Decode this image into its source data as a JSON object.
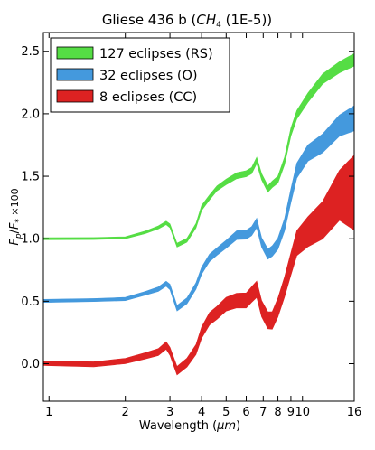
{
  "chart_data": {
    "type": "area",
    "title_main": "Gliese 436 b (",
    "title_species": "CH",
    "title_species_sub": "4",
    "title_suffix": " (1E-5))",
    "xlabel_main": "Wavelength (",
    "xlabel_unit": "μm",
    "xlabel_close": ")",
    "ylabel_a": "F",
    "ylabel_a_sub": "p",
    "ylabel_slash": "/",
    "ylabel_b": "F",
    "ylabel_b_sub": "*",
    "ylabel_mult": " ×100",
    "x_scale": "log",
    "xlim": [
      0.95,
      16
    ],
    "ylim": [
      -0.3,
      2.65
    ],
    "x_ticks": [
      1,
      2,
      3,
      4,
      5,
      6,
      7,
      8,
      9,
      10,
      16
    ],
    "x_tick_labels": [
      "1",
      "2",
      "3",
      "4",
      "5",
      "6",
      "7",
      "8",
      "9",
      "10",
      "16"
    ],
    "y_ticks": [
      0.0,
      0.5,
      1.0,
      1.5,
      2.0,
      2.5
    ],
    "y_tick_labels": [
      "0.0",
      "0.5",
      "1.0",
      "1.5",
      "2.0",
      "2.5"
    ],
    "grid": false,
    "legend_position": "top-left",
    "x": [
      0.95,
      1.5,
      2.0,
      2.4,
      2.7,
      2.9,
      3.0,
      3.2,
      3.5,
      3.8,
      4.0,
      4.3,
      4.6,
      5.0,
      5.5,
      6.0,
      6.3,
      6.6,
      6.9,
      7.3,
      7.6,
      8.0,
      8.5,
      9.0,
      9.5,
      10.5,
      12.0,
      14.0,
      16.0
    ],
    "series": [
      {
        "name": "127 eclipses (RS)",
        "color": "#55dd44",
        "center": [
          1.0,
          1.0,
          1.01,
          1.05,
          1.09,
          1.13,
          1.1,
          0.95,
          0.99,
          1.1,
          1.25,
          1.33,
          1.4,
          1.46,
          1.5,
          1.52,
          1.55,
          1.62,
          1.5,
          1.4,
          1.43,
          1.48,
          1.62,
          1.85,
          2.0,
          2.12,
          2.28,
          2.38,
          2.42
        ],
        "half_width": [
          0.008,
          0.008,
          0.008,
          0.01,
          0.012,
          0.014,
          0.015,
          0.015,
          0.016,
          0.018,
          0.02,
          0.02,
          0.02,
          0.022,
          0.024,
          0.024,
          0.025,
          0.025,
          0.025,
          0.026,
          0.026,
          0.028,
          0.03,
          0.032,
          0.034,
          0.037,
          0.04,
          0.045,
          0.05
        ]
      },
      {
        "name": "32 eclipses (O)",
        "color": "#4499dd",
        "center": [
          0.5,
          0.51,
          0.52,
          0.56,
          0.6,
          0.64,
          0.61,
          0.45,
          0.5,
          0.62,
          0.75,
          0.84,
          0.9,
          0.96,
          1.02,
          1.04,
          1.06,
          1.12,
          0.98,
          0.87,
          0.9,
          0.97,
          1.1,
          1.35,
          1.55,
          1.67,
          1.78,
          1.9,
          1.95
        ],
        "half_width": [
          0.012,
          0.012,
          0.013,
          0.015,
          0.018,
          0.02,
          0.022,
          0.022,
          0.024,
          0.026,
          0.028,
          0.03,
          0.03,
          0.032,
          0.035,
          0.036,
          0.036,
          0.038,
          0.038,
          0.04,
          0.042,
          0.045,
          0.05,
          0.055,
          0.06,
          0.065,
          0.075,
          0.085,
          0.1
        ]
      },
      {
        "name": "8 eclipses (CC)",
        "color": "#dd2222",
        "center": [
          0.0,
          0.0,
          0.02,
          0.06,
          0.1,
          0.14,
          0.1,
          -0.05,
          0.0,
          0.12,
          0.25,
          0.35,
          0.42,
          0.47,
          0.5,
          0.52,
          0.54,
          0.6,
          0.45,
          0.33,
          0.36,
          0.45,
          0.6,
          0.82,
          0.95,
          1.05,
          1.18,
          1.3,
          1.4
        ],
        "half_width": [
          0.018,
          0.02,
          0.022,
          0.025,
          0.028,
          0.03,
          0.032,
          0.034,
          0.036,
          0.04,
          0.045,
          0.05,
          0.052,
          0.055,
          0.058,
          0.06,
          0.062,
          0.065,
          0.065,
          0.068,
          0.07,
          0.075,
          0.08,
          0.09,
          0.1,
          0.12,
          0.15,
          0.2,
          0.3
        ]
      }
    ]
  }
}
